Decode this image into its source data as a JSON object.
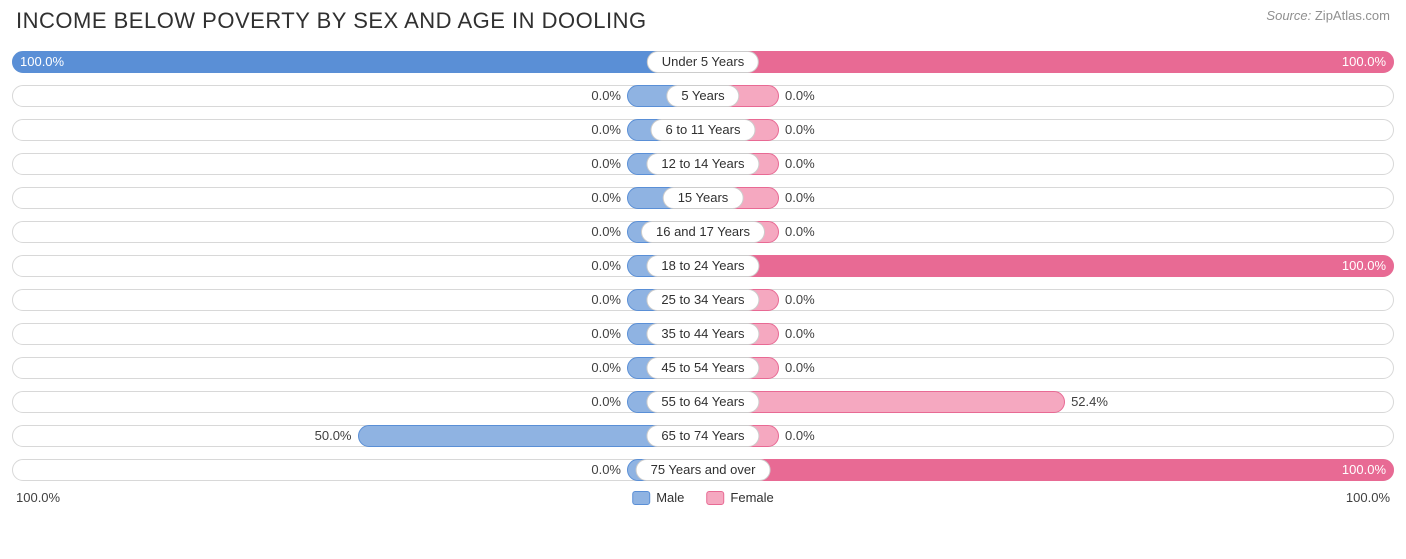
{
  "title": "INCOME BELOW POVERTY BY SEX AND AGE IN DOOLING",
  "source_label": "Source:",
  "source_value": "ZipAtlas.com",
  "colors": {
    "male_fill": "#8fb3e2",
    "male_border": "#5a8fd6",
    "male_solid": "#5a8fd6",
    "female_fill": "#f5a8c0",
    "female_border": "#e86a94",
    "female_solid": "#e86a94",
    "track_border": "#d8d8d8",
    "text": "#303030",
    "value_text": "#404040",
    "value_text_inside": "#ffffff",
    "pill_border": "#cccccc",
    "background": "#ffffff"
  },
  "chart": {
    "type": "diverging-bar",
    "min_bar_pct": 11,
    "axis_max_label": "100.0%",
    "legend": {
      "male": "Male",
      "female": "Female"
    },
    "label_fontsize": 13,
    "title_fontsize": 22,
    "rows": [
      {
        "category": "Under 5 Years",
        "male": 100.0,
        "female": 100.0,
        "male_label": "100.0%",
        "female_label": "100.0%"
      },
      {
        "category": "5 Years",
        "male": 0.0,
        "female": 0.0,
        "male_label": "0.0%",
        "female_label": "0.0%"
      },
      {
        "category": "6 to 11 Years",
        "male": 0.0,
        "female": 0.0,
        "male_label": "0.0%",
        "female_label": "0.0%"
      },
      {
        "category": "12 to 14 Years",
        "male": 0.0,
        "female": 0.0,
        "male_label": "0.0%",
        "female_label": "0.0%"
      },
      {
        "category": "15 Years",
        "male": 0.0,
        "female": 0.0,
        "male_label": "0.0%",
        "female_label": "0.0%"
      },
      {
        "category": "16 and 17 Years",
        "male": 0.0,
        "female": 0.0,
        "male_label": "0.0%",
        "female_label": "0.0%"
      },
      {
        "category": "18 to 24 Years",
        "male": 0.0,
        "female": 100.0,
        "male_label": "0.0%",
        "female_label": "100.0%"
      },
      {
        "category": "25 to 34 Years",
        "male": 0.0,
        "female": 0.0,
        "male_label": "0.0%",
        "female_label": "0.0%"
      },
      {
        "category": "35 to 44 Years",
        "male": 0.0,
        "female": 0.0,
        "male_label": "0.0%",
        "female_label": "0.0%"
      },
      {
        "category": "45 to 54 Years",
        "male": 0.0,
        "female": 0.0,
        "male_label": "0.0%",
        "female_label": "0.0%"
      },
      {
        "category": "55 to 64 Years",
        "male": 0.0,
        "female": 52.4,
        "male_label": "0.0%",
        "female_label": "52.4%"
      },
      {
        "category": "65 to 74 Years",
        "male": 50.0,
        "female": 0.0,
        "male_label": "50.0%",
        "female_label": "0.0%"
      },
      {
        "category": "75 Years and over",
        "male": 0.0,
        "female": 100.0,
        "male_label": "0.0%",
        "female_label": "100.0%"
      }
    ]
  }
}
